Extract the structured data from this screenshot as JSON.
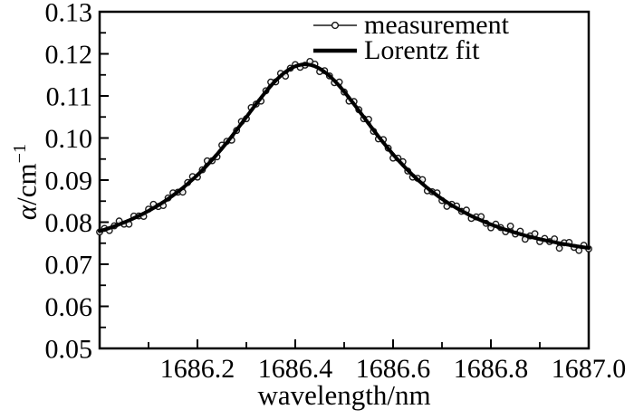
{
  "figure": {
    "background": "#ffffff",
    "foreground": "#000000",
    "measurement_color": "#1a1a1a",
    "fit_color": "#000000"
  },
  "axes_titles": {
    "x": "wavelength/nm",
    "y_alpha": "α",
    "y_rest": "/cm",
    "y_exponent": "−1"
  },
  "legend": {
    "items": [
      {
        "label": "measurement"
      },
      {
        "label": "Lorentz fit"
      }
    ]
  },
  "chart_data": {
    "type": "line",
    "title": "",
    "xlabel": "wavelength/nm",
    "ylabel": "α/cm⁻¹",
    "xlim": [
      1686.0,
      1687.0
    ],
    "ylim": [
      0.05,
      0.13
    ],
    "grid": false,
    "legend_position": "top-center-inside",
    "x_major_ticks": [
      1686.2,
      1686.4,
      1686.6,
      1686.8,
      1687.0
    ],
    "x_tick_labels": [
      "1686.2",
      "1686.4",
      "1686.6",
      "1686.8",
      "1687.0"
    ],
    "x_minor_ticks": [
      1686.1,
      1686.3,
      1686.5,
      1686.7,
      1686.9
    ],
    "y_major_ticks": [
      0.05,
      0.06,
      0.07,
      0.08,
      0.09,
      0.1,
      0.11,
      0.12,
      0.13
    ],
    "y_tick_labels": [
      "0.05",
      "0.06",
      "0.07",
      "0.08",
      "0.09",
      "0.10",
      "0.11",
      "0.12",
      "0.13"
    ],
    "y_minor_ticks": [
      0.055,
      0.065,
      0.075,
      0.085,
      0.095,
      0.105,
      0.115,
      0.125
    ],
    "series": [
      {
        "name": "measurement",
        "type": "scatter-line",
        "marker": "open-circle",
        "color": "#1a1a1a",
        "x_start": 1686.0,
        "x_step": 0.01,
        "y": [
          0.07765,
          0.07852,
          0.07802,
          0.07913,
          0.08027,
          0.07953,
          0.07952,
          0.08144,
          0.08149,
          0.08137,
          0.08309,
          0.08424,
          0.08373,
          0.08396,
          0.08574,
          0.08696,
          0.08712,
          0.08714,
          0.08941,
          0.09084,
          0.09072,
          0.09246,
          0.09456,
          0.09461,
          0.09553,
          0.0983,
          0.09922,
          0.09948,
          0.10179,
          0.10392,
          0.10457,
          0.10723,
          0.10807,
          0.10877,
          0.11122,
          0.11328,
          0.11333,
          0.11535,
          0.1147,
          0.11658,
          0.11744,
          0.11679,
          0.11731,
          0.11819,
          0.11754,
          0.11578,
          0.116,
          0.11475,
          0.11313,
          0.11328,
          0.11092,
          0.10877,
          0.10867,
          0.10673,
          0.10457,
          0.10442,
          0.10159,
          0.09978,
          0.09962,
          0.0976,
          0.09523,
          0.09521,
          0.09436,
          0.09216,
          0.09072,
          0.09044,
          0.09011,
          0.08744,
          0.08722,
          0.08696,
          0.08514,
          0.08376,
          0.08423,
          0.08384,
          0.08259,
          0.08287,
          0.08089,
          0.08124,
          0.08132,
          0.07973,
          0.07867,
          0.07953,
          0.07872,
          0.07772,
          0.07905,
          0.07719,
          0.07786,
          0.07594,
          0.07674,
          0.07725,
          0.07538,
          0.07612,
          0.07537,
          0.07603,
          0.07381,
          0.07509,
          0.07519,
          0.07399,
          0.0733,
          0.07452,
          0.07365
        ]
      },
      {
        "name": "Lorentz fit",
        "type": "line",
        "color": "#000000",
        "lorentz": {
          "center": 1686.42,
          "gamma": 0.205,
          "baseline": 0.0684,
          "amplitude": 0.0491,
          "peak": 0.1175
        }
      }
    ]
  }
}
